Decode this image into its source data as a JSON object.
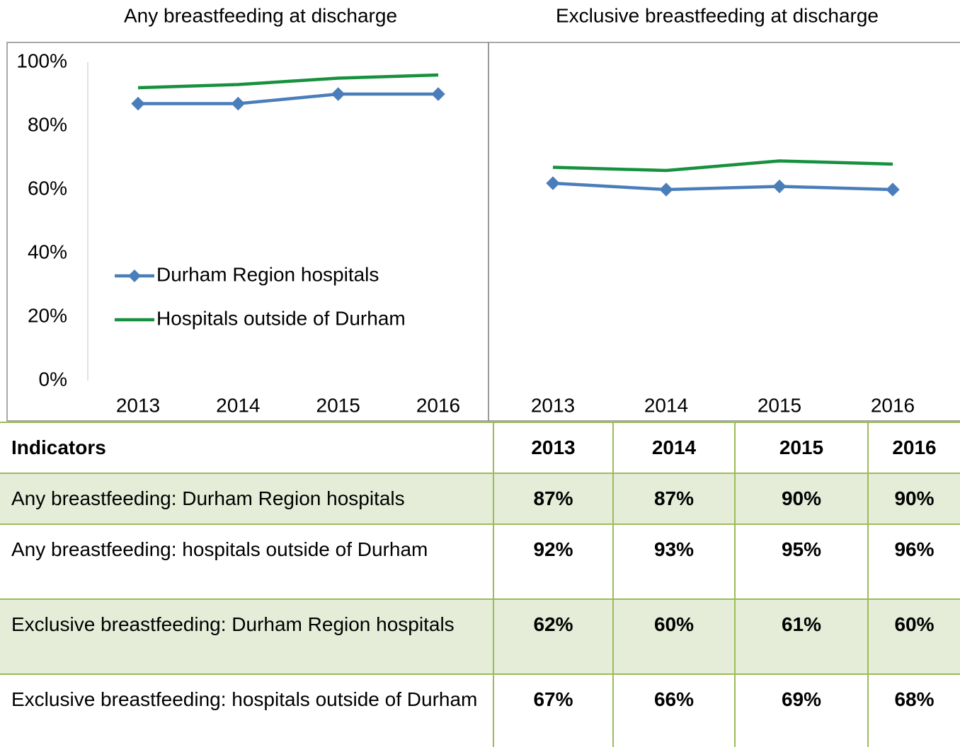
{
  "chart_data": [
    {
      "type": "line",
      "title": "Any breastfeeding at discharge",
      "categories": [
        "2013",
        "2014",
        "2015",
        "2016"
      ],
      "series": [
        {
          "name": "Durham Region hospitals",
          "color": "#4a7ebb",
          "marker": "diamond",
          "values": [
            87,
            87,
            90,
            90
          ]
        },
        {
          "name": "Hospitals outside of Durham",
          "color": "#17913f",
          "values": [
            92,
            93,
            95,
            96
          ]
        }
      ],
      "ylim": [
        0,
        100
      ],
      "yticks": [
        {
          "value": 0,
          "label": "0%"
        },
        {
          "value": 20,
          "label": "20%"
        },
        {
          "value": 40,
          "label": "40%"
        },
        {
          "value": 60,
          "label": "60%"
        },
        {
          "value": 80,
          "label": "80%"
        },
        {
          "value": 100,
          "label": "100%"
        }
      ],
      "legend": "lower left"
    },
    {
      "type": "line",
      "title": "Exclusive breastfeeding at discharge",
      "categories": [
        "2013",
        "2014",
        "2015",
        "2016"
      ],
      "series": [
        {
          "name": "Durham Region hospitals",
          "color": "#4a7ebb",
          "marker": "diamond",
          "values": [
            62,
            60,
            61,
            60
          ]
        },
        {
          "name": "Hospitals outside of Durham",
          "color": "#17913f",
          "values": [
            67,
            66,
            69,
            68
          ]
        }
      ],
      "ylim": [
        0,
        100
      ]
    }
  ],
  "table": {
    "header": [
      "Indicators",
      "2013",
      "2014",
      "2015",
      "2016"
    ],
    "rows": [
      [
        "Any breastfeeding: Durham Region hospitals",
        "87%",
        "87%",
        "90%",
        "90%"
      ],
      [
        "Any breastfeeding: hospitals outside of Durham",
        "92%",
        "93%",
        "95%",
        "96%"
      ],
      [
        "Exclusive breastfeeding: Durham Region hospitals",
        "62%",
        "60%",
        "61%",
        "60%"
      ],
      [
        "Exclusive breastfeeding: hospitals outside of Durham",
        "67%",
        "66%",
        "69%",
        "68%"
      ]
    ]
  }
}
